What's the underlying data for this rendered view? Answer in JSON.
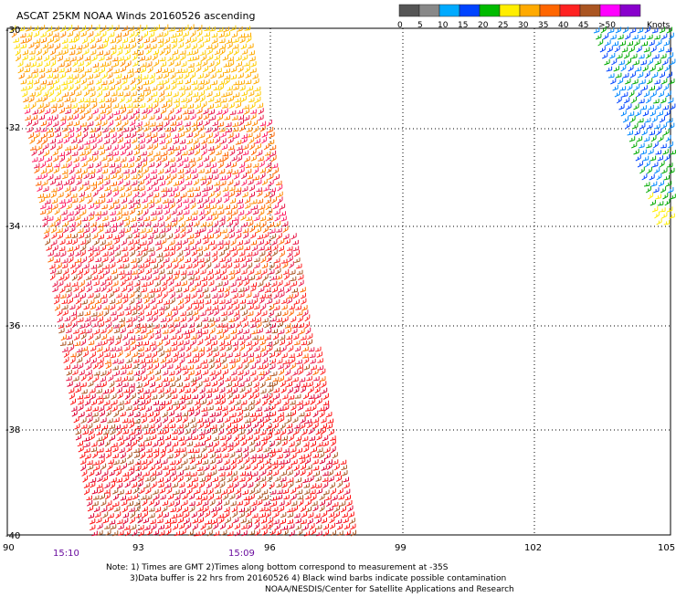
{
  "title": "ASCAT 25KM NOAA Winds 20160526 ascending",
  "legend": {
    "unit": "Knots",
    "labels": [
      "0",
      "5",
      "10",
      "15",
      "20",
      "25",
      "30",
      "35",
      "40",
      "45",
      ">50"
    ],
    "colors": [
      "#555555",
      "#888888",
      "#00aaff",
      "#0044ff",
      "#00bb00",
      "#ffee00",
      "#ffaa00",
      "#ff6600",
      "#ff2222",
      "#aa5522",
      "#ff00ff",
      "#8800cc"
    ]
  },
  "map": {
    "lon_ticks": [
      "90",
      "93",
      "96",
      "99",
      "102",
      "105"
    ],
    "lat_ticks": [
      "-30",
      "-32",
      "-34",
      "-36",
      "-38",
      "-40"
    ],
    "lon_range": [
      90,
      105
    ],
    "lat_range": [
      -40,
      -30
    ],
    "gridlines": true
  },
  "times": [
    "15:10",
    "15:09"
  ],
  "notes": {
    "line1": "Note: 1) Times are GMT 2)Times along bottom correspond to measurement at -35S",
    "line2": "3)Data buffer is 22 hrs from 20160526 4) Black wind barbs indicate possible contamination",
    "credit": "NOAA/NESDIS/Center for Satellite Applications and Research"
  }
}
